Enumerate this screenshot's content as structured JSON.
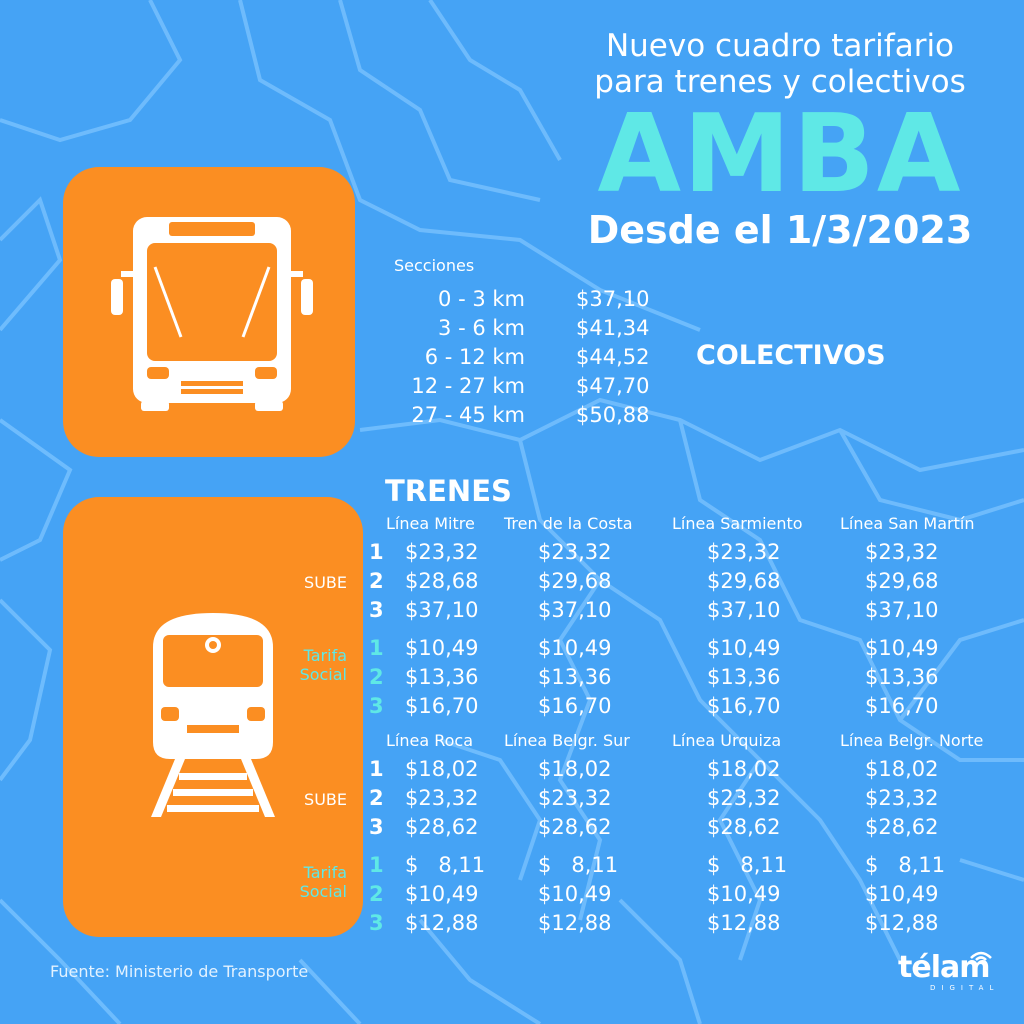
{
  "header": {
    "title": "Nuevo cuadro tarifario para trenes y colectivos",
    "title_line1": "Nuevo cuadro tarifario",
    "title_line2": "para trenes y colectivos",
    "region": "AMBA",
    "date": "Desde el 1/3/2023"
  },
  "colectivos": {
    "heading": "COLECTIVOS",
    "sections_label": "Secciones",
    "sections": [
      {
        "range": "0 - 3 km",
        "price": "$37,10"
      },
      {
        "range": "3 - 6 km",
        "price": "$41,34"
      },
      {
        "range": "6 - 12 km",
        "price": "$44,52"
      },
      {
        "range": "12 - 27 km",
        "price": "$47,70"
      },
      {
        "range": "27 - 45 km",
        "price": "$50,88"
      }
    ]
  },
  "trenes": {
    "heading": "TRENES",
    "labels": {
      "sube": "SUBE",
      "tarifa_social_1": "Tarifa",
      "tarifa_social_2": "Social"
    },
    "section_numbers": [
      "1",
      "2",
      "3"
    ],
    "blocks": [
      {
        "lines": [
          "Línea Mitre",
          "Tren de la Costa",
          "Línea Sarmiento",
          "Línea San Martín"
        ],
        "sube": [
          [
            "$23,32",
            "$23,32",
            "$23,32",
            "$23,32"
          ],
          [
            "$28,68",
            "$29,68",
            "$29,68",
            "$29,68"
          ],
          [
            "$37,10",
            "$37,10",
            "$37,10",
            "$37,10"
          ]
        ],
        "tarifa_social": [
          [
            "$10,49",
            "$10,49",
            "$10,49",
            "$10,49"
          ],
          [
            "$13,36",
            "$13,36",
            "$13,36",
            "$13,36"
          ],
          [
            "$16,70",
            "$16,70",
            "$16,70",
            "$16,70"
          ]
        ]
      },
      {
        "lines": [
          "Línea Roca",
          "Línea Belgr. Sur",
          "Línea Urquiza",
          "Línea Belgr. Norte"
        ],
        "sube": [
          [
            "$18,02",
            "$18,02",
            "$18,02",
            "$18,02"
          ],
          [
            "$23,32",
            "$23,32",
            "$23,32",
            "$23,32"
          ],
          [
            "$28,62",
            "$28,62",
            "$28,62",
            "$28,62"
          ]
        ],
        "tarifa_social": [
          [
            "$   8,11",
            "$   8,11",
            "$   8,11",
            "$   8,11"
          ],
          [
            "$10,49",
            "$10,49",
            "$10,49",
            "$10,49"
          ],
          [
            "$12,88",
            "$12,88",
            "$12,88",
            "$12,88"
          ]
        ]
      }
    ]
  },
  "footer": {
    "source": "Fuente: Ministerio de Transporte",
    "logo": "télam",
    "logo_sub": "DIGITAL"
  },
  "colors": {
    "background": "#45a3f5",
    "panel": "#fb8e22",
    "accent": "#5fe8e6",
    "text": "#ffffff"
  },
  "icons": {
    "bus": "bus-icon",
    "train": "train-icon",
    "logo_waves": "signal-waves-icon"
  }
}
